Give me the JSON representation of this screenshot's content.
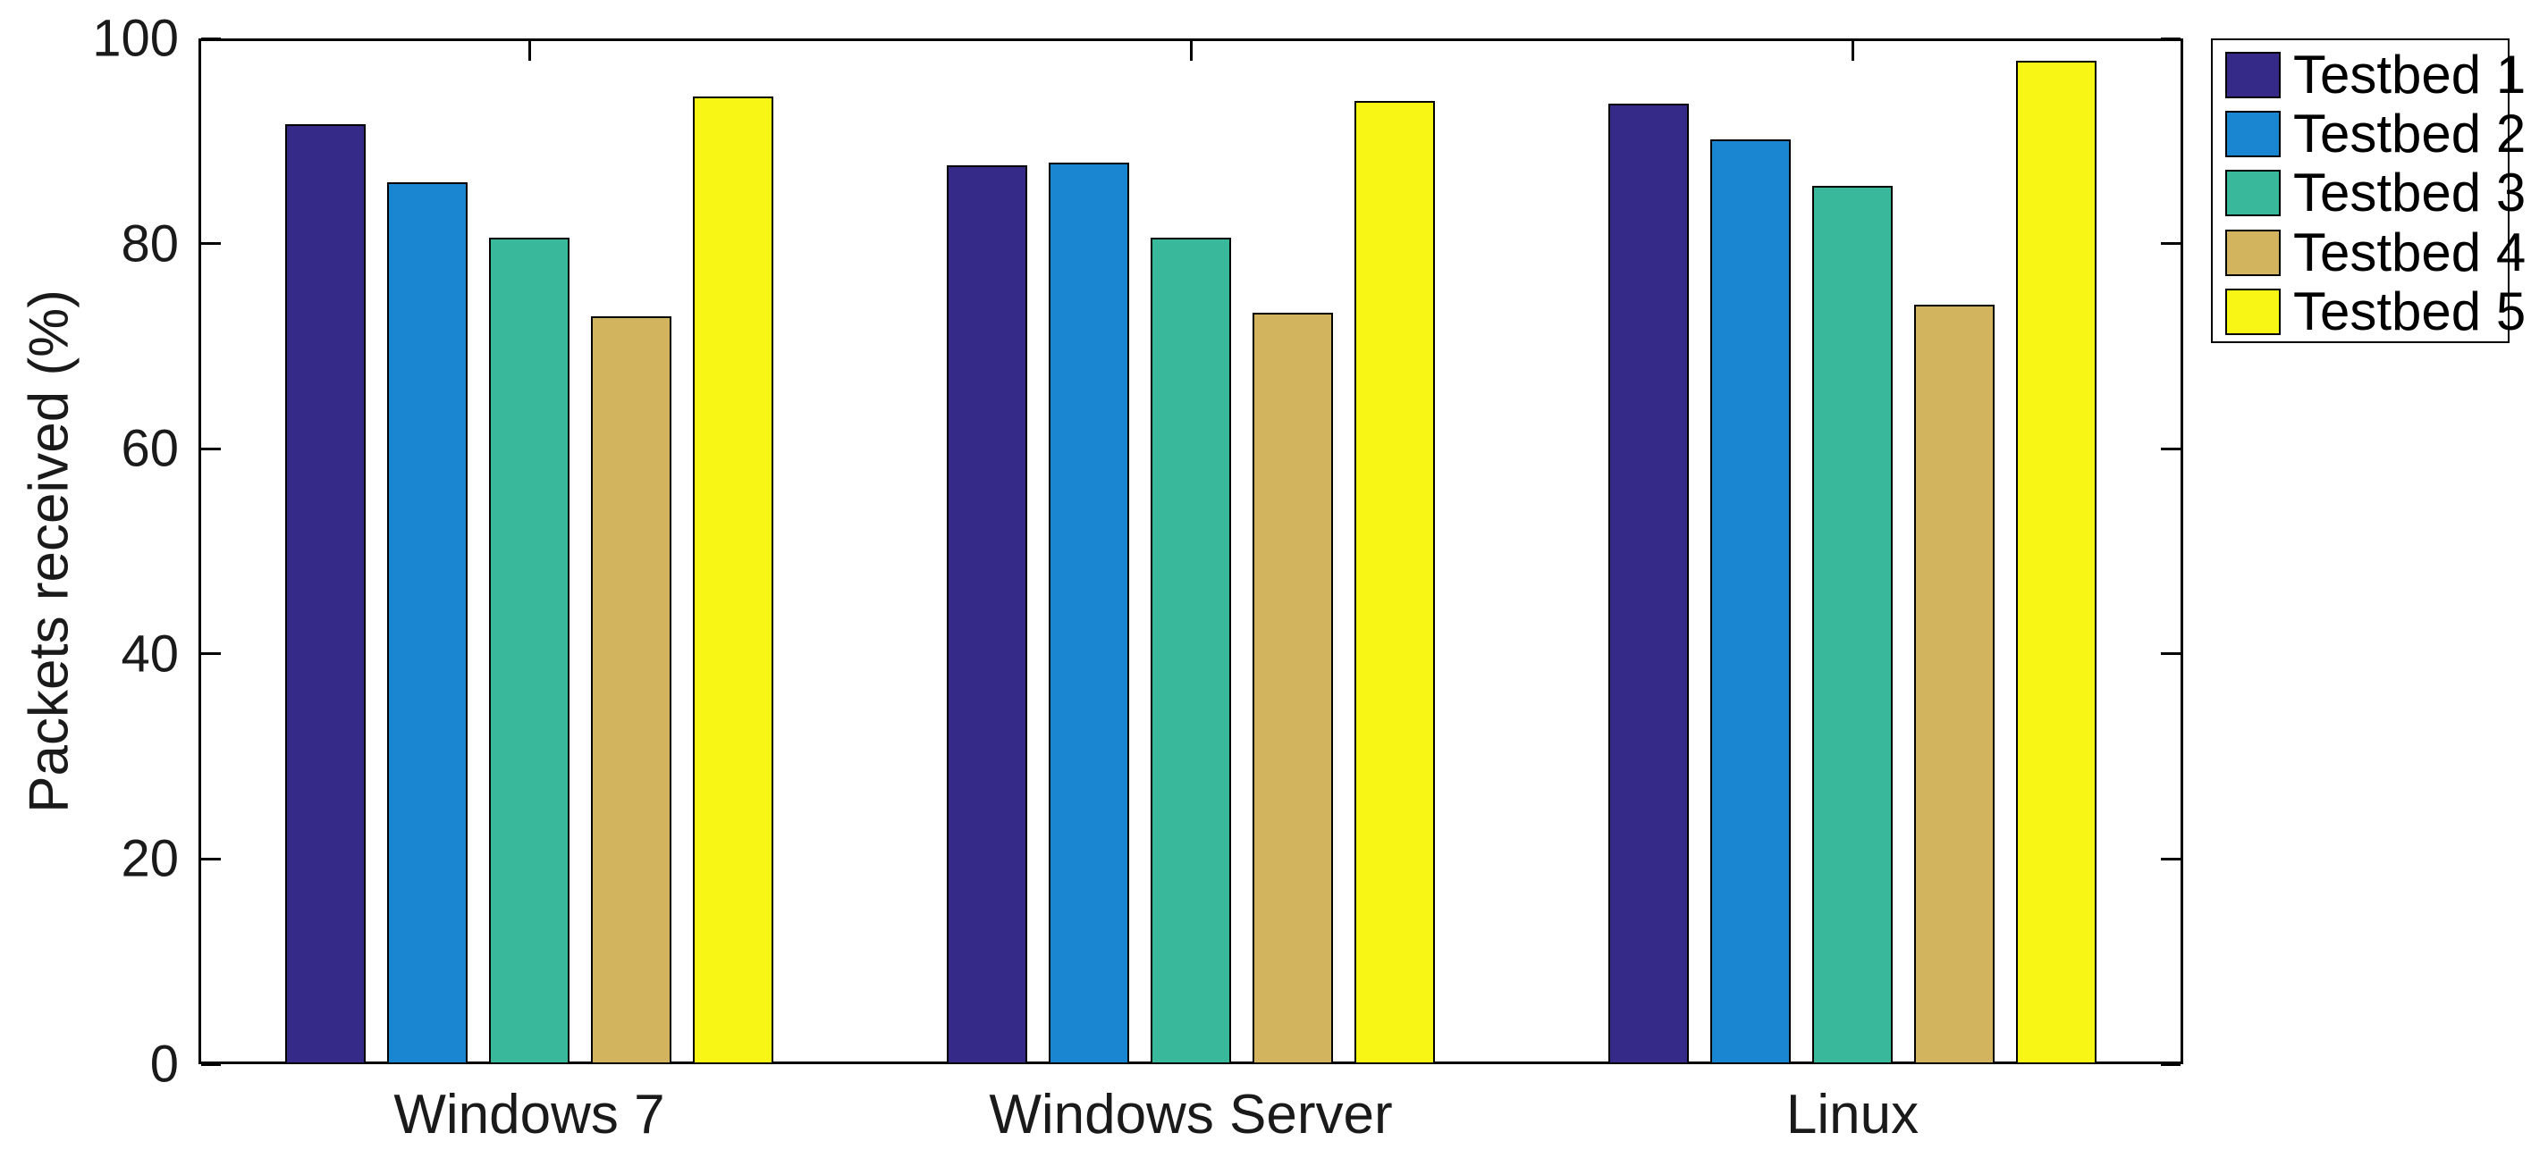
{
  "chart_data": {
    "type": "bar",
    "title": "",
    "xlabel": "",
    "ylabel": "Packets received (%)",
    "ylim": [
      0,
      100
    ],
    "yticks": [
      0,
      20,
      40,
      60,
      80,
      100
    ],
    "grid": false,
    "legend_position": "outside-top-right",
    "categories": [
      "Windows 7",
      "Windows Server",
      "Linux"
    ],
    "series": [
      {
        "name": "Testbed 1",
        "color": "#352a87",
        "values": [
          91.6,
          87.6,
          93.6
        ]
      },
      {
        "name": "Testbed 2",
        "color": "#1a86d1",
        "values": [
          86.0,
          87.9,
          90.2
        ]
      },
      {
        "name": "Testbed 3",
        "color": "#3ab89b",
        "values": [
          80.6,
          80.6,
          85.6
        ]
      },
      {
        "name": "Testbed 4",
        "color": "#d2b45e",
        "values": [
          72.9,
          73.3,
          74.0
        ]
      },
      {
        "name": "Testbed 5",
        "color": "#f8f614",
        "values": [
          94.3,
          93.9,
          97.8
        ]
      }
    ]
  }
}
